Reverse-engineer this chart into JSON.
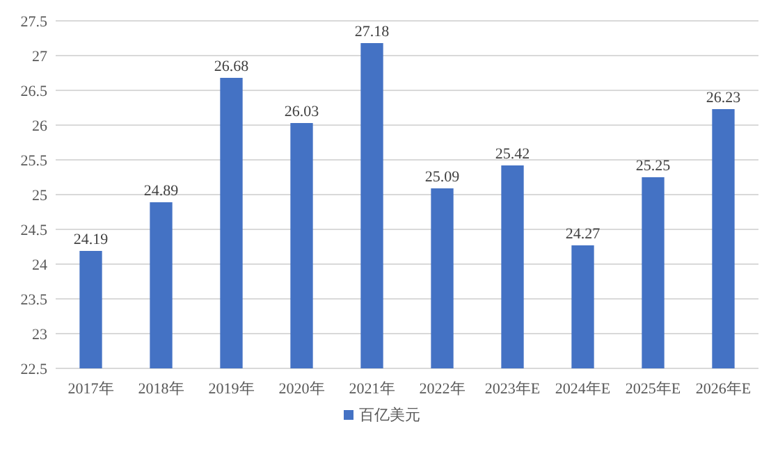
{
  "chart_data": {
    "type": "bar",
    "categories": [
      "2017年",
      "2018年",
      "2019年",
      "2020年",
      "2021年",
      "2022年",
      "2023年E",
      "2024年E",
      "2025年E",
      "2026年E"
    ],
    "series": [
      {
        "name": "百亿美元",
        "color": "#4472c4",
        "values": [
          24.19,
          24.89,
          26.68,
          26.03,
          27.18,
          25.09,
          25.42,
          24.27,
          25.25,
          26.23
        ]
      }
    ],
    "ylim": [
      22.5,
      27.5
    ],
    "yticks": [
      22.5,
      23,
      23.5,
      24,
      24.5,
      25,
      25.5,
      26,
      26.5,
      27,
      27.5
    ],
    "grid": "y",
    "legend": "bottom",
    "data_labels": true
  }
}
